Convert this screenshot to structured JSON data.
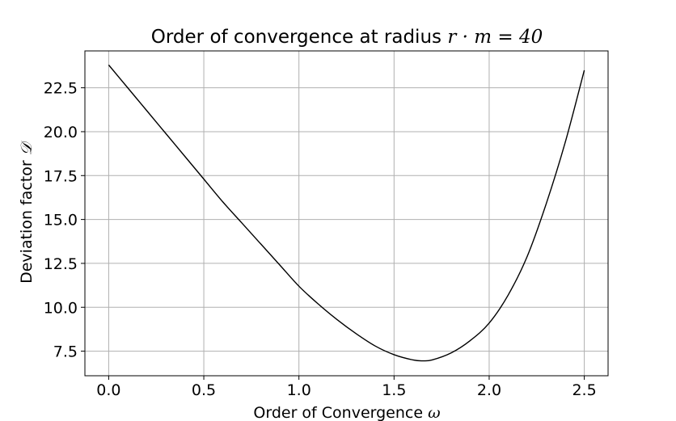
{
  "chart_data": {
    "type": "line",
    "title": {
      "text": "Order of convergence at radius ",
      "math": "r · m = 40"
    },
    "xlabel": {
      "text": "Order of Convergence ",
      "math": "ω"
    },
    "ylabel": {
      "text": "Deviation factor ",
      "math": "𝒟"
    },
    "xlim": [
      -0.125,
      2.625
    ],
    "ylim": [
      6.1,
      24.6
    ],
    "xticks": [
      0.0,
      0.5,
      1.0,
      1.5,
      2.0,
      2.5
    ],
    "xtick_labels": [
      "0.0",
      "0.5",
      "1.0",
      "1.5",
      "2.0",
      "2.5"
    ],
    "yticks": [
      7.5,
      10.0,
      12.5,
      15.0,
      17.5,
      20.0,
      22.5
    ],
    "ytick_labels": [
      "7.5",
      "10.0",
      "12.5",
      "15.0",
      "17.5",
      "20.0",
      "22.5"
    ],
    "grid": true,
    "line_color": "#000000",
    "grid_color": "#b0b0b0",
    "series": [
      {
        "x": [
          0.0,
          0.1,
          0.2,
          0.3,
          0.4,
          0.5,
          0.6,
          0.7,
          0.8,
          0.9,
          1.0,
          1.1,
          1.2,
          1.3,
          1.4,
          1.5,
          1.6,
          1.65,
          1.7,
          1.8,
          1.9,
          2.0,
          2.1,
          2.2,
          2.3,
          2.4,
          2.5
        ],
        "y": [
          23.8,
          22.5,
          21.2,
          19.9,
          18.6,
          17.3,
          16.0,
          14.8,
          13.6,
          12.4,
          11.2,
          10.2,
          9.3,
          8.5,
          7.8,
          7.3,
          7.0,
          6.95,
          7.0,
          7.4,
          8.1,
          9.1,
          10.7,
          12.9,
          15.9,
          19.4,
          23.5
        ]
      }
    ]
  }
}
